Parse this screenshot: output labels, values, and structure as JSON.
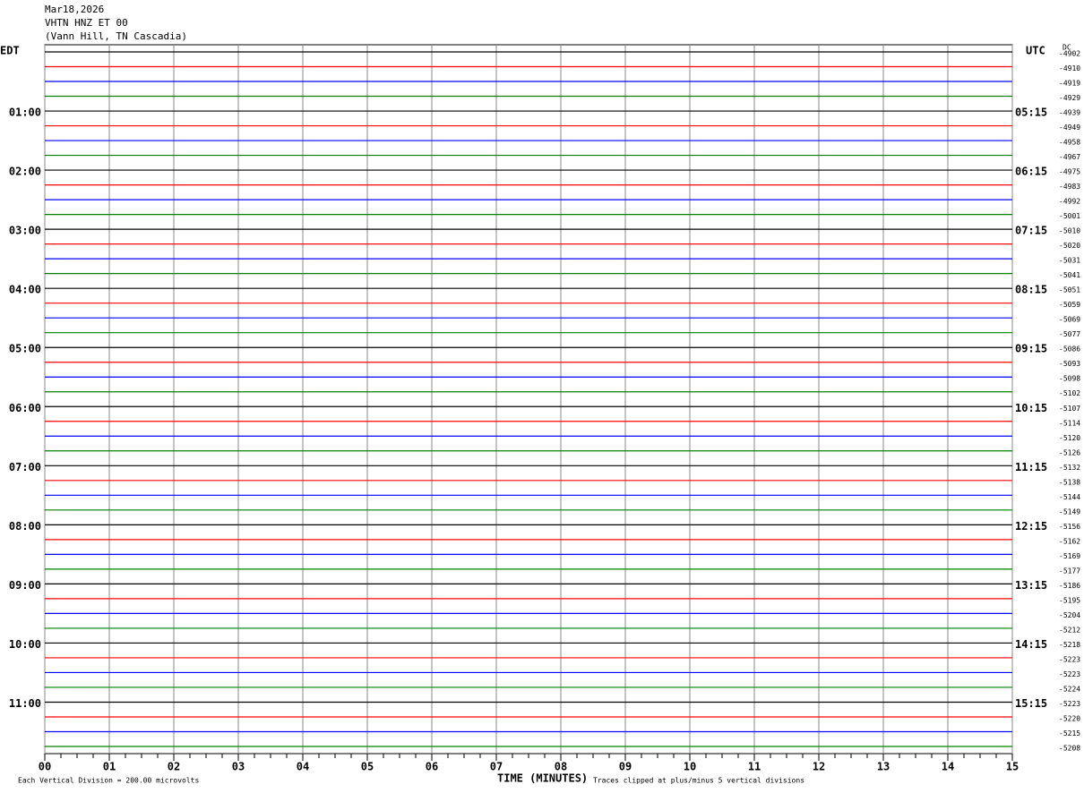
{
  "header": {
    "lines": [
      "Mar18,2026",
      "VHTN HNZ ET 00",
      "(Vann Hill, TN Cascadia)"
    ]
  },
  "left_axis": {
    "title": "EDT",
    "labels": [
      "01:00",
      "02:00",
      "03:00",
      "04:00",
      "05:00",
      "06:00",
      "07:00",
      "08:00",
      "09:00",
      "10:00",
      "11:00"
    ]
  },
  "right_axis": {
    "title": "UTC",
    "labels": [
      "05:15",
      "06:15",
      "07:15",
      "08:15",
      "09:15",
      "10:15",
      "11:15",
      "12:15",
      "13:15",
      "14:15",
      "15:15"
    ]
  },
  "dc": {
    "title": "DC",
    "values": [
      -4902,
      -4910,
      -4919,
      -4929,
      -4939,
      -4949,
      -4958,
      -4967,
      -4975,
      -4983,
      -4992,
      -5001,
      -5010,
      -5020,
      -5031,
      -5041,
      -5051,
      -5059,
      -5069,
      -5077,
      -5086,
      -5093,
      -5098,
      -5102,
      -5107,
      -5114,
      -5120,
      -5126,
      -5132,
      -5138,
      -5144,
      -5149,
      -5156,
      -5162,
      -5169,
      -5177,
      -5186,
      -5195,
      -5204,
      -5212,
      -5218,
      -5223,
      -5223,
      -5224,
      -5223,
      -5220,
      -5215,
      -5208
    ]
  },
  "x_axis": {
    "title": "TIME (MINUTES)",
    "ticks": [
      "00",
      "01",
      "02",
      "03",
      "04",
      "05",
      "06",
      "07",
      "08",
      "09",
      "10",
      "11",
      "12",
      "13",
      "14",
      "15"
    ]
  },
  "footer": {
    "left": "Each Vertical Division =  200.00 microvolts",
    "right": "Traces clipped at plus/minus 5 vertical divisions"
  },
  "trace_colors": [
    "#000000",
    "#ff0000",
    "#0000ff",
    "#008000"
  ]
}
